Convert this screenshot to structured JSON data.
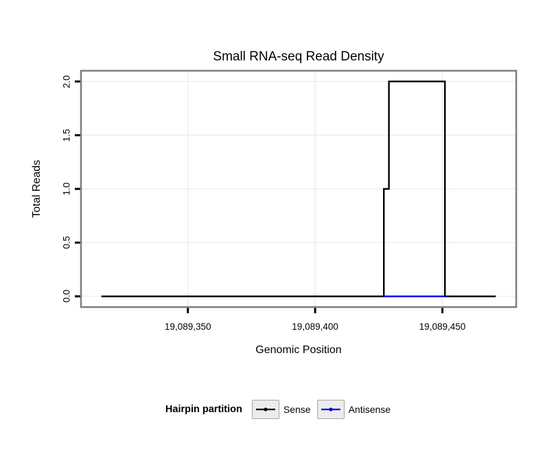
{
  "chart_data": {
    "type": "line",
    "title": "Small RNA-seq Read Density",
    "xlabel": "Genomic Position",
    "ylabel": "Total Reads",
    "xlim": [
      19089308,
      19089479
    ],
    "ylim": [
      -0.1,
      2.1
    ],
    "grid": true,
    "grid_color": "#efefef",
    "panel_border_color": "#808080",
    "x_ticks": [
      {
        "value": 19089350,
        "label": "19,089,350"
      },
      {
        "value": 19089400,
        "label": "19,089,400"
      },
      {
        "value": 19089450,
        "label": "19,089,450"
      }
    ],
    "y_ticks": [
      {
        "value": 0.0,
        "label": "0.0"
      },
      {
        "value": 0.5,
        "label": "0.5"
      },
      {
        "value": 1.0,
        "label": "1.0"
      },
      {
        "value": 1.5,
        "label": "1.5"
      },
      {
        "value": 2.0,
        "label": "2.0"
      }
    ],
    "legend": {
      "title": "Hairpin partition",
      "position": "bottom"
    },
    "series": [
      {
        "name": "Sense",
        "color": "#000000",
        "step": true,
        "points": [
          [
            19089316,
            0
          ],
          [
            19089427,
            0
          ],
          [
            19089427,
            1
          ],
          [
            19089429,
            1
          ],
          [
            19089429,
            2
          ],
          [
            19089451,
            2
          ],
          [
            19089451,
            0
          ],
          [
            19089471,
            0
          ]
        ]
      },
      {
        "name": "Antisense",
        "color": "#0000ee",
        "step": true,
        "points": [
          [
            19089427,
            0
          ],
          [
            19089451,
            0
          ]
        ]
      }
    ]
  }
}
